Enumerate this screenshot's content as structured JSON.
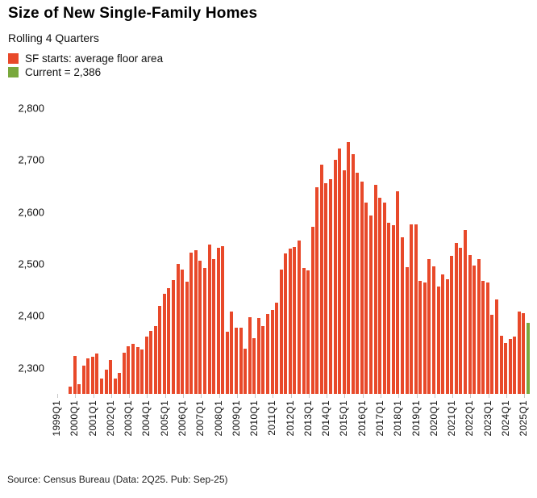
{
  "header": {
    "title": "Size of New Single-Family Homes",
    "subtitle": "Rolling 4 Quarters"
  },
  "legend": [
    {
      "label": "SF starts: average floor area",
      "color": "#e8492a"
    },
    {
      "label": "Current = 2,386",
      "color": "#79a83d"
    }
  ],
  "footer": {
    "source": "Source: Census Bureau (Data: 2Q25. Pub: Sep-25)"
  },
  "chart_data": {
    "type": "bar",
    "title": "Size of New Single-Family Homes",
    "subtitle": "Rolling 4 Quarters",
    "series_label": "SF starts: average floor area",
    "current_label": "Current = 2,386",
    "current_value": 2386,
    "bar_color": "#e8492a",
    "current_color": "#79a83d",
    "grid": false,
    "legend_position": "top-left",
    "ylim": [
      2250,
      2800
    ],
    "y_ticks": [
      "2,300",
      "2,400",
      "2,500",
      "2,600",
      "2,700",
      "2,800"
    ],
    "y_tick_values": [
      2300,
      2400,
      2500,
      2600,
      2700,
      2800
    ],
    "x_tick_labels": [
      "1999Q1",
      "2000Q1",
      "2001Q1",
      "2002Q1",
      "2003Q1",
      "2004Q1",
      "2005Q1",
      "2006Q1",
      "2007Q1",
      "2008Q1",
      "2009Q1",
      "2010Q1",
      "2011Q1",
      "2012Q1",
      "2013Q1",
      "2014Q1",
      "2015Q1",
      "2016Q1",
      "2017Q1",
      "2018Q1",
      "2019Q1",
      "2020Q1",
      "2021Q1",
      "2022Q1",
      "2023Q1",
      "2024Q1",
      "2025Q1"
    ],
    "categories": [
      "1999Q4",
      "2000Q1",
      "2000Q2",
      "2000Q3",
      "2000Q4",
      "2001Q1",
      "2001Q2",
      "2001Q3",
      "2001Q4",
      "2002Q1",
      "2002Q2",
      "2002Q3",
      "2002Q4",
      "2003Q1",
      "2003Q2",
      "2003Q3",
      "2003Q4",
      "2004Q1",
      "2004Q2",
      "2004Q3",
      "2004Q4",
      "2005Q1",
      "2005Q2",
      "2005Q3",
      "2005Q4",
      "2006Q1",
      "2006Q2",
      "2006Q3",
      "2006Q4",
      "2007Q1",
      "2007Q2",
      "2007Q3",
      "2007Q4",
      "2008Q1",
      "2008Q2",
      "2008Q3",
      "2008Q4",
      "2009Q1",
      "2009Q2",
      "2009Q3",
      "2009Q4",
      "2010Q1",
      "2010Q2",
      "2010Q3",
      "2010Q4",
      "2011Q1",
      "2011Q2",
      "2011Q3",
      "2011Q4",
      "2012Q1",
      "2012Q2",
      "2012Q3",
      "2012Q4",
      "2013Q1",
      "2013Q2",
      "2013Q3",
      "2013Q4",
      "2014Q1",
      "2014Q2",
      "2014Q3",
      "2014Q4",
      "2015Q1",
      "2015Q2",
      "2015Q3",
      "2015Q4",
      "2016Q1",
      "2016Q2",
      "2016Q3",
      "2016Q4",
      "2017Q1",
      "2017Q2",
      "2017Q3",
      "2017Q4",
      "2018Q1",
      "2018Q2",
      "2018Q3",
      "2018Q4",
      "2019Q1",
      "2019Q2",
      "2019Q3",
      "2019Q4",
      "2020Q1",
      "2020Q2",
      "2020Q3",
      "2020Q4",
      "2021Q1",
      "2021Q2",
      "2021Q3",
      "2021Q4",
      "2022Q1",
      "2022Q2",
      "2022Q3",
      "2022Q4",
      "2023Q1",
      "2023Q2",
      "2023Q3",
      "2023Q4",
      "2024Q1",
      "2024Q2",
      "2024Q3",
      "2024Q4",
      "2025Q1",
      "2025Q2"
    ],
    "values": [
      2264,
      2323,
      2269,
      2305,
      2318,
      2321,
      2327,
      2279,
      2297,
      2315,
      2279,
      2291,
      2330,
      2342,
      2347,
      2340,
      2335,
      2360,
      2371,
      2381,
      2419,
      2442,
      2454,
      2469,
      2500,
      2489,
      2466,
      2522,
      2527,
      2506,
      2492,
      2538,
      2509,
      2532,
      2535,
      2369,
      2409,
      2378,
      2377,
      2337,
      2397,
      2358,
      2396,
      2381,
      2404,
      2412,
      2425,
      2490,
      2521,
      2530,
      2533,
      2545,
      2492,
      2487,
      2571,
      2648,
      2692,
      2656,
      2663,
      2700,
      2722,
      2680,
      2735,
      2712,
      2676,
      2659,
      2619,
      2594,
      2653,
      2628,
      2618,
      2580,
      2574,
      2640,
      2551,
      2494,
      2577,
      2577,
      2467,
      2464,
      2509,
      2496,
      2457,
      2480,
      2471,
      2515,
      2540,
      2531,
      2566,
      2517,
      2497,
      2509,
      2468,
      2464,
      2403,
      2432,
      2362,
      2348,
      2355,
      2360,
      2408,
      2405,
      2386
    ]
  }
}
